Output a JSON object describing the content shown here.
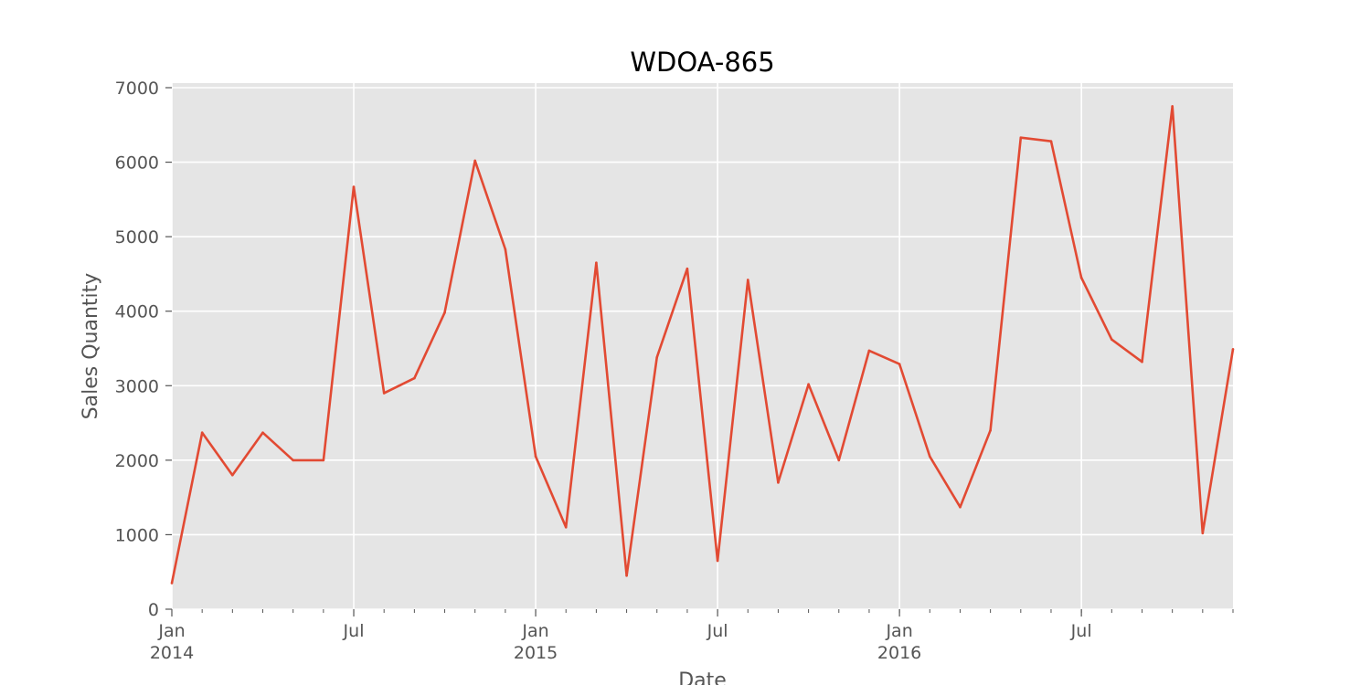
{
  "chart_data": {
    "type": "line",
    "title": "WDOA-865",
    "xlabel": "Date",
    "ylabel": "Sales Quantity",
    "ylim": [
      0,
      7000
    ],
    "xlim": [
      "2014-01",
      "2016-12"
    ],
    "grid": true,
    "colors": {
      "background": "#e5e5e5",
      "grid": "#ffffff",
      "line": "#e24a33",
      "tick_text": "#555555"
    },
    "y_ticks": [
      "0",
      "1000",
      "2000",
      "3000",
      "4000",
      "5000",
      "6000",
      "7000"
    ],
    "x_tick_labels": [
      {
        "date": "2014-01",
        "label": "Jan",
        "year": "2014"
      },
      {
        "date": "2014-07",
        "label": "Jul",
        "year": ""
      },
      {
        "date": "2015-01",
        "label": "Jan",
        "year": "2015"
      },
      {
        "date": "2015-07",
        "label": "Jul",
        "year": ""
      },
      {
        "date": "2016-01",
        "label": "Jan",
        "year": "2016"
      },
      {
        "date": "2016-07",
        "label": "Jul",
        "year": ""
      }
    ],
    "x": [
      "2014-01",
      "2014-02",
      "2014-03",
      "2014-04",
      "2014-05",
      "2014-06",
      "2014-07",
      "2014-08",
      "2014-09",
      "2014-10",
      "2014-11",
      "2014-12",
      "2015-01",
      "2015-02",
      "2015-03",
      "2015-04",
      "2015-05",
      "2015-06",
      "2015-07",
      "2015-08",
      "2015-09",
      "2015-10",
      "2015-11",
      "2015-12",
      "2016-01",
      "2016-02",
      "2016-03",
      "2016-04",
      "2016-05",
      "2016-06",
      "2016-07",
      "2016-08",
      "2016-09",
      "2016-10",
      "2016-11",
      "2016-12"
    ],
    "series": [
      {
        "values": [
          350,
          2370,
          1800,
          2370,
          2000,
          2000,
          5670,
          2900,
          3100,
          3980,
          6020,
          4830,
          2050,
          1100,
          4650,
          450,
          3380,
          4570,
          650,
          4420,
          1700,
          3020,
          2000,
          3470,
          3290,
          2050,
          1370,
          2400,
          6330,
          6280,
          4450,
          3620,
          3320,
          6750,
          1020,
          3490
        ]
      }
    ]
  }
}
